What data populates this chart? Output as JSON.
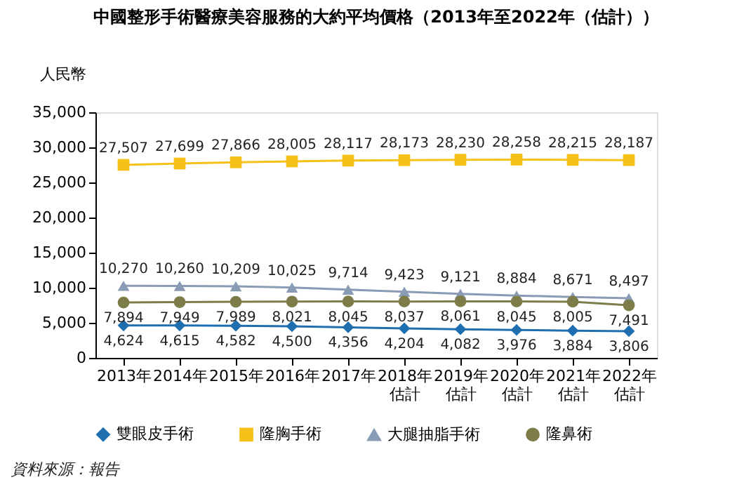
{
  "chart_data": {
    "type": "line",
    "title": "中國整形手術醫療美容服務的大約平均價格（2013年至2022年（估計））",
    "ylabel": "人民幣",
    "categories": [
      "2013年",
      "2014年",
      "2015年",
      "2016年",
      "2017年",
      "2018年估計",
      "2019年估計",
      "2020年估計",
      "2021年估計",
      "2022年估計"
    ],
    "series": [
      {
        "name": "雙眼皮手術",
        "color": "#1f6eb0",
        "marker": "diamond",
        "values": [
          4624,
          4615,
          4582,
          4500,
          4356,
          4204,
          4082,
          3976,
          3884,
          3806
        ],
        "value_labels": [
          "4,624",
          "4,615",
          "4,582",
          "4,500",
          "4,356",
          "4,204",
          "4,082",
          "3,976",
          "3,884",
          "3,806"
        ]
      },
      {
        "name": "隆胸手術",
        "color": "#f5c118",
        "marker": "square",
        "values": [
          27507,
          27699,
          27866,
          28005,
          28117,
          28173,
          28230,
          28258,
          28215,
          28187
        ],
        "value_labels": [
          "27,507",
          "27,699",
          "27,866",
          "28,005",
          "28,117",
          "28,173",
          "28,230",
          "28,258",
          "28,215",
          "28,187"
        ]
      },
      {
        "name": "大腿抽脂手術",
        "color": "#8a9bb5",
        "marker": "triangle",
        "values": [
          10270,
          10260,
          10209,
          10025,
          9714,
          9423,
          9121,
          8884,
          8671,
          8497
        ],
        "value_labels": [
          "10,270",
          "10,260",
          "10,209",
          "10,025",
          "9,714",
          "9,423",
          "9,121",
          "8,884",
          "8,671",
          "8,497"
        ]
      },
      {
        "name": "隆鼻術",
        "color": "#7d7d4a",
        "marker": "circle",
        "values": [
          7894,
          7949,
          7989,
          8021,
          8045,
          8037,
          8061,
          8045,
          8005,
          7491
        ],
        "value_labels": [
          "7,894",
          "7,949",
          "7,989",
          "8,021",
          "8,045",
          "8,037",
          "8,061",
          "8,045",
          "8,005",
          "7,491"
        ]
      }
    ],
    "ylim": [
      0,
      35000
    ],
    "yticks": [
      0,
      {
        "value": 5000,
        "label": "5,000"
      },
      {
        "value": 10000,
        "label": "10,000"
      },
      {
        "value": 15000,
        "label": "15,000"
      },
      {
        "value": 20000,
        "label": "20,000"
      },
      {
        "value": 25000,
        "label": "25,000"
      },
      {
        "value": 30000,
        "label": "30,000"
      },
      {
        "value": 35000,
        "label": "35,000"
      }
    ],
    "grid": false,
    "legend": "bottom",
    "line_style": "solid",
    "annotations": [
      "資料來源：報告"
    ]
  }
}
